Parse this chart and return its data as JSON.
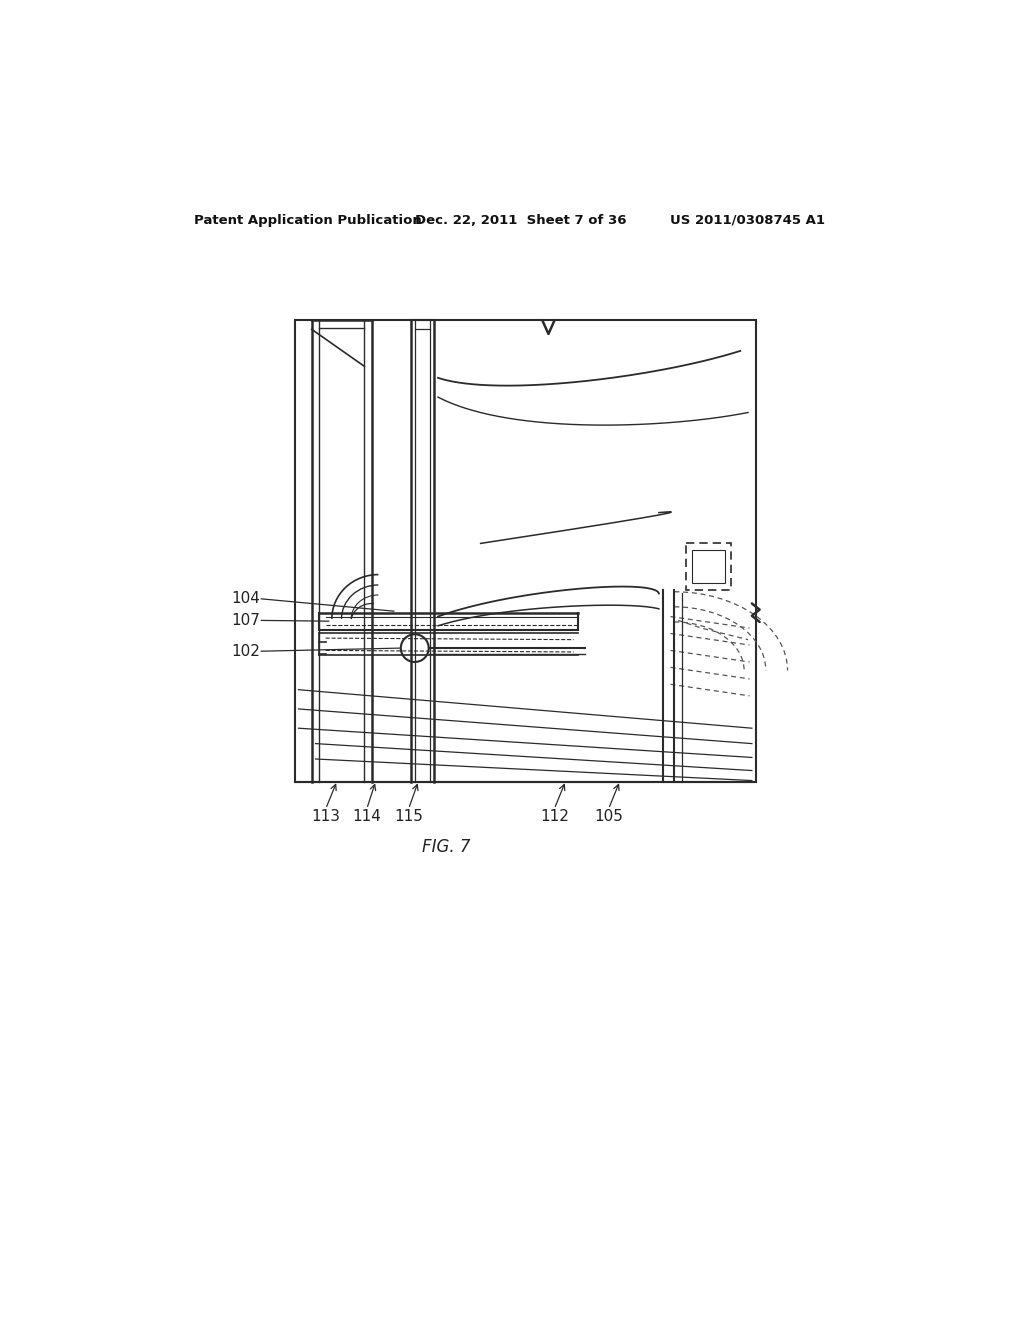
{
  "bg_color": "#ffffff",
  "header_left": "Patent Application Publication",
  "header_mid": "Dec. 22, 2011  Sheet 7 of 36",
  "header_right": "US 2011/0308745 A1",
  "fig_label": "FIG. 7",
  "line_color": "#2a2a2a",
  "dashed_color": "#555555",
  "label_color": "#222222"
}
